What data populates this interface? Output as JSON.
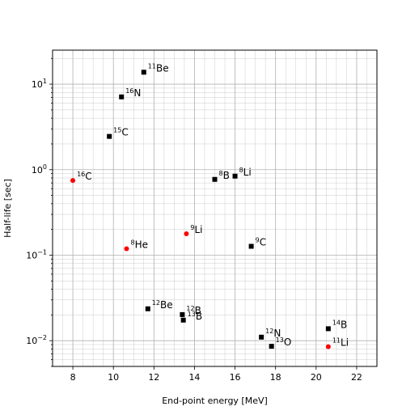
{
  "chart_data": {
    "type": "scatter",
    "xlabel": "End-point energy [MeV]",
    "ylabel": "Half-life [sec]",
    "xlim": [
      7,
      23
    ],
    "ylim": [
      0.005,
      25
    ],
    "y_scale": "log",
    "grid": "major and minor, both axes",
    "x_ticks": [
      "8",
      "10",
      "12",
      "14",
      "16",
      "18",
      "20",
      "22"
    ],
    "y_ticks": [
      {
        "base": "10",
        "exp": "1",
        "value": 10
      },
      {
        "base": "10",
        "exp": "0",
        "value": 1
      },
      {
        "base": "10",
        "exp": "−1",
        "value": 0.1
      },
      {
        "base": "10",
        "exp": "−2",
        "value": 0.01
      }
    ],
    "colors": {
      "black_series": "#000000",
      "red_series": "#ff0000",
      "grid": "#b0b0b0"
    },
    "series": [
      {
        "marker": "square",
        "color": "#000000",
        "points": [
          {
            "mass": "11",
            "el": "Be",
            "x": 11.5,
            "y": 13.8
          },
          {
            "mass": "16",
            "el": "N",
            "x": 10.4,
            "y": 7.1
          },
          {
            "mass": "15",
            "el": "C",
            "x": 9.8,
            "y": 2.45
          },
          {
            "mass": "8",
            "el": "B",
            "x": 15.0,
            "y": 0.77
          },
          {
            "mass": "8",
            "el": "Li",
            "x": 16.0,
            "y": 0.84
          },
          {
            "mass": "9",
            "el": "C",
            "x": 16.8,
            "y": 0.127
          },
          {
            "mass": "12",
            "el": "Be",
            "x": 11.7,
            "y": 0.0236
          },
          {
            "mass": "12",
            "el": "B",
            "x": 13.4,
            "y": 0.0202
          },
          {
            "mass": "13",
            "el": "B",
            "x": 13.45,
            "y": 0.0174
          },
          {
            "mass": "12",
            "el": "N",
            "x": 17.3,
            "y": 0.011
          },
          {
            "mass": "13",
            "el": "O",
            "x": 17.8,
            "y": 0.0086
          },
          {
            "mass": "14",
            "el": "B",
            "x": 20.6,
            "y": 0.0138
          }
        ]
      },
      {
        "marker": "circle",
        "color": "#ff0000",
        "points": [
          {
            "mass": "16",
            "el": "C",
            "x": 8.0,
            "y": 0.747
          },
          {
            "mass": "8",
            "el": "He",
            "x": 10.65,
            "y": 0.119
          },
          {
            "mass": "9",
            "el": "Li",
            "x": 13.6,
            "y": 0.178
          },
          {
            "mass": "11",
            "el": "Li",
            "x": 20.6,
            "y": 0.0085
          }
        ]
      }
    ]
  }
}
